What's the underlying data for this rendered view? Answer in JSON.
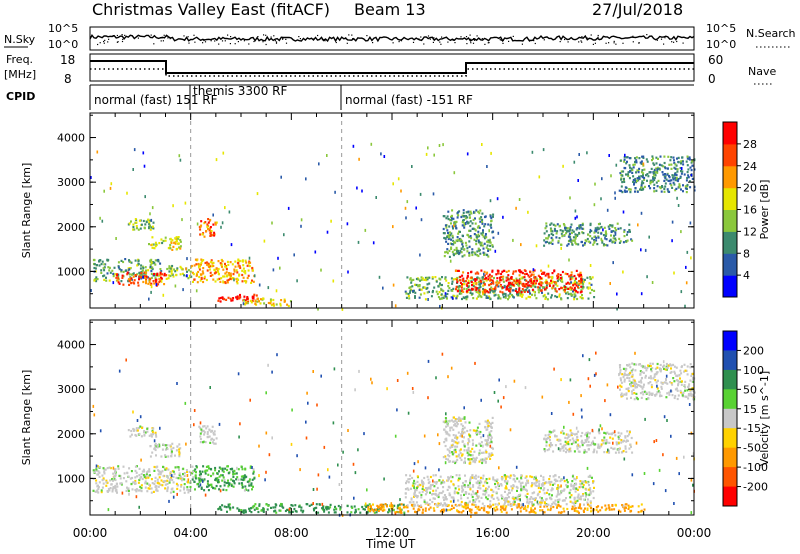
{
  "header": {
    "station": "Christmas Valley East (fitACF)",
    "beam": "Beam 13",
    "date": "27/Jul/2018"
  },
  "panels": {
    "nsky_label": "N.Sky",
    "nsearch_label": "N.Search",
    "freq_label_1": "Freq.",
    "freq_label_2": "[MHz]",
    "nave_label": "Nave",
    "cpid_label": "CPID",
    "nsky_ticks": [
      "10^5",
      "10^0"
    ],
    "nsearch_ticks": [
      "10^5",
      "10^0"
    ],
    "freq_ticks": [
      "18",
      "8"
    ],
    "nave_ticks": [
      "60",
      "0"
    ]
  },
  "cpid_labels": [
    {
      "text": "normal (fast) 151 RF",
      "start_hour": 0.0
    },
    {
      "text": "themis 3300 RF",
      "start_hour": 4.0
    },
    {
      "text": "normal (fast) -151 RF",
      "start_hour": 10.0
    }
  ],
  "colors": {
    "power": [
      "#0000ff",
      "#2a5aa8",
      "#3c8a6e",
      "#8ac73c",
      "#e6e600",
      "#ff9900",
      "#ff4400",
      "#ff0000"
    ],
    "velocity": [
      "#0000ff",
      "#2050b0",
      "#2f8f4f",
      "#59d233",
      "#c8c8c8",
      "#ffd200",
      "#ff9900",
      "#ff5500",
      "#ff0000"
    ]
  },
  "chart_data": [
    {
      "type": "heatmap",
      "title": "",
      "xlabel": "",
      "ylabel": "Slant Range [km]",
      "x_ticks": [
        "00:00",
        "04:00",
        "08:00",
        "12:00",
        "16:00",
        "20:00",
        "00:00"
      ],
      "y_ticks": [
        "1000",
        "2000",
        "3000",
        "4000"
      ],
      "xlim_hours": [
        0,
        24
      ],
      "ylim_km": [
        180,
        4550
      ],
      "colorbar": {
        "label": "Power [dB]",
        "ticks": [
          "4",
          "8",
          "12",
          "16",
          "20",
          "24",
          "28"
        ],
        "range": [
          0,
          30
        ]
      },
      "regions": [
        {
          "hours": [
            0.1,
            2.8
          ],
          "km": [
            800,
            1300
          ],
          "power": 11
        },
        {
          "hours": [
            1.0,
            3.0
          ],
          "km": [
            700,
            1000
          ],
          "power": 25
        },
        {
          "hours": [
            3.0,
            4.0
          ],
          "km": [
            850,
            1150
          ],
          "power": 14
        },
        {
          "hours": [
            1.5,
            2.5
          ],
          "km": [
            1950,
            2200
          ],
          "power": 13
        },
        {
          "hours": [
            2.3,
            3.6
          ],
          "km": [
            1500,
            1800
          ],
          "power": 15
        },
        {
          "hours": [
            4.0,
            6.5
          ],
          "km": [
            750,
            1300
          ],
          "power": 20
        },
        {
          "hours": [
            4.3,
            5.0
          ],
          "km": [
            1800,
            2200
          ],
          "power": 22
        },
        {
          "hours": [
            5.0,
            6.6
          ],
          "km": [
            350,
            500
          ],
          "power": 28
        },
        {
          "hours": [
            6.0,
            8.0
          ],
          "km": [
            250,
            420
          ],
          "power": 18
        },
        {
          "hours": [
            12.5,
            20.0
          ],
          "km": [
            400,
            900
          ],
          "power": 12
        },
        {
          "hours": [
            14.5,
            19.5
          ],
          "km": [
            550,
            1050
          ],
          "power": 26
        },
        {
          "hours": [
            14.0,
            16.0
          ],
          "km": [
            1350,
            2400
          ],
          "power": 10
        },
        {
          "hours": [
            18.0,
            21.5
          ],
          "km": [
            1600,
            2100
          ],
          "power": 10
        },
        {
          "hours": [
            21.0,
            24.0
          ],
          "km": [
            2800,
            3600
          ],
          "power": 9
        }
      ]
    },
    {
      "type": "heatmap",
      "title": "",
      "xlabel": "Time UT",
      "ylabel": "Slant Range [km]",
      "x_ticks": [
        "00:00",
        "04:00",
        "08:00",
        "12:00",
        "16:00",
        "20:00",
        "00:00"
      ],
      "y_ticks": [
        "1000",
        "2000",
        "3000",
        "4000"
      ],
      "xlim_hours": [
        0,
        24
      ],
      "ylim_km": [
        180,
        4550
      ],
      "colorbar": {
        "label": "Velocity [m s^-1]",
        "ticks": [
          "200",
          "100",
          "50",
          "15",
          "-15",
          "-50",
          "-100",
          "-200"
        ],
        "range": [
          -250,
          250
        ]
      },
      "regions": [
        {
          "hours": [
            0.1,
            4.0
          ],
          "km": [
            700,
            1300
          ],
          "velocity": 0
        },
        {
          "hours": [
            1.5,
            2.6
          ],
          "km": [
            1950,
            2200
          ],
          "velocity": 0
        },
        {
          "hours": [
            2.3,
            3.6
          ],
          "km": [
            1500,
            1800
          ],
          "velocity": 0
        },
        {
          "hours": [
            4.0,
            6.5
          ],
          "km": [
            750,
            1300
          ],
          "velocity": 30
        },
        {
          "hours": [
            4.3,
            5.0
          ],
          "km": [
            1800,
            2200
          ],
          "velocity": 0
        },
        {
          "hours": [
            5.0,
            12.5
          ],
          "km": [
            250,
            450
          ],
          "velocity": 40
        },
        {
          "hours": [
            11.0,
            22.0
          ],
          "km": [
            250,
            450
          ],
          "velocity": -40
        },
        {
          "hours": [
            12.5,
            20.0
          ],
          "km": [
            400,
            1100
          ],
          "velocity": 0
        },
        {
          "hours": [
            14.0,
            16.0
          ],
          "km": [
            1350,
            2400
          ],
          "velocity": 0
        },
        {
          "hours": [
            18.0,
            21.5
          ],
          "km": [
            1600,
            2100
          ],
          "velocity": 0
        },
        {
          "hours": [
            21.0,
            24.0
          ],
          "km": [
            2800,
            3600
          ],
          "velocity": 0
        }
      ]
    }
  ]
}
